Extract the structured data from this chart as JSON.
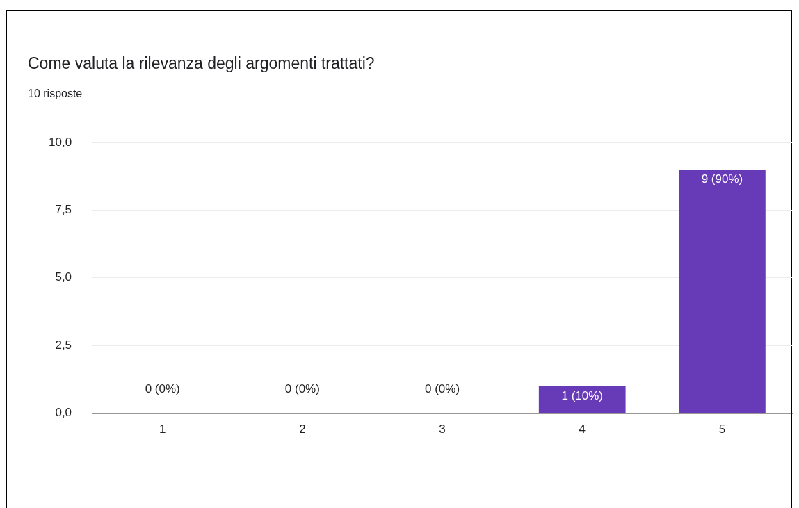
{
  "chart_data": {
    "type": "bar",
    "title": "Come valuta la rilevanza degli argomenti trattati?",
    "subtitle": "10 risposte",
    "categories": [
      "1",
      "2",
      "3",
      "4",
      "5"
    ],
    "values": [
      0,
      0,
      0,
      1,
      9
    ],
    "value_labels": [
      "0 (0%)",
      "0 (0%)",
      "0 (0%)",
      "1 (10%)",
      "9 (90%)"
    ],
    "color": "#673ab7",
    "ylim": [
      0,
      10
    ],
    "yticks": [
      {
        "value": 0,
        "label": "0,0"
      },
      {
        "value": 2.5,
        "label": "2,5"
      },
      {
        "value": 5,
        "label": "5,0"
      },
      {
        "value": 7.5,
        "label": "7,5"
      },
      {
        "value": 10,
        "label": "10,0"
      }
    ],
    "grid": "y",
    "legend": false
  }
}
